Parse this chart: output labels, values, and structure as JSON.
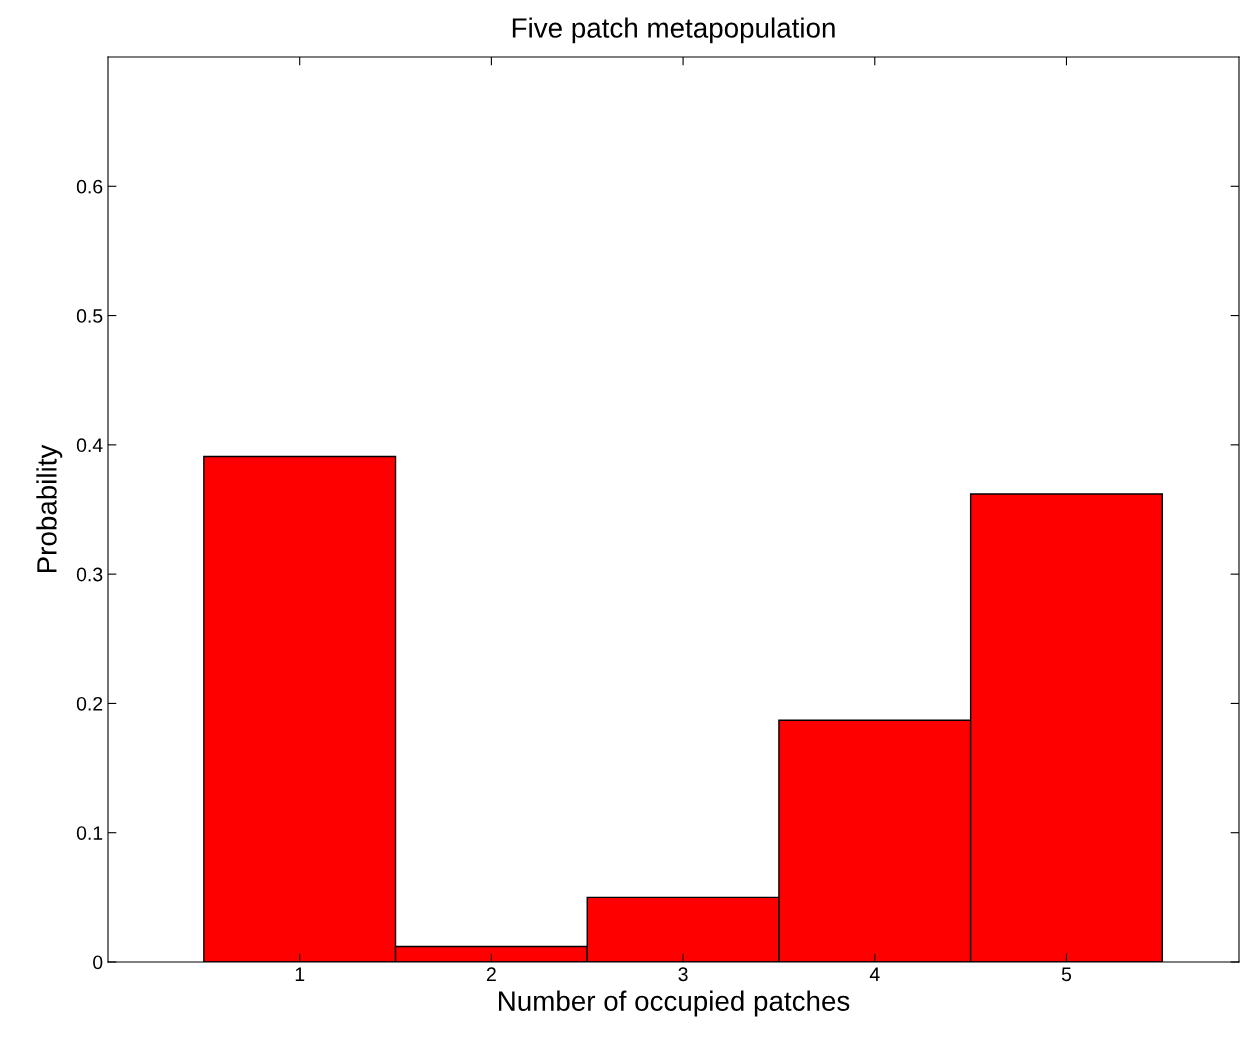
{
  "chart_data": {
    "type": "bar",
    "title": "Five patch metapopulation",
    "xlabel": "Number of occupied patches",
    "ylabel": "Probability",
    "x": [
      1,
      2,
      3,
      4,
      5
    ],
    "values": [
      0.391,
      0.012,
      0.05,
      0.187,
      0.362
    ],
    "color": "#ff0000",
    "xlim": [
      0,
      5.9
    ],
    "xticks": [
      1,
      2,
      3,
      4,
      5
    ],
    "ylim": [
      0,
      0.7
    ],
    "yticks": [
      0,
      0.1,
      0.2,
      0.3,
      0.4,
      0.5,
      0.6
    ],
    "grid": false,
    "legend": false
  }
}
